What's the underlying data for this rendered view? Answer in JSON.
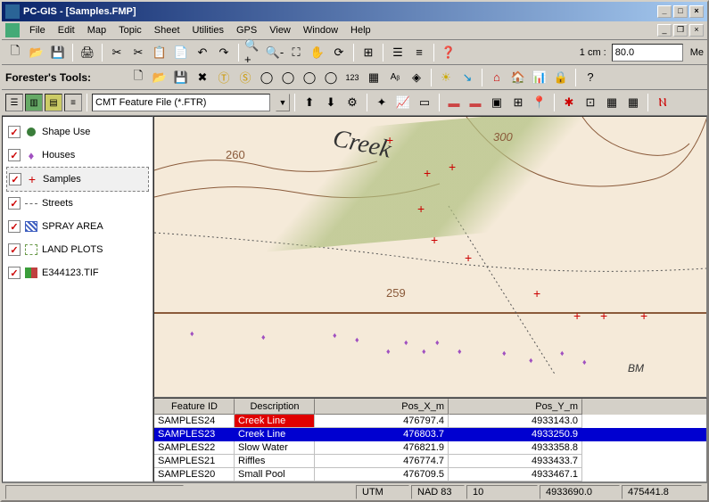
{
  "window": {
    "title": "PC-GIS - [Samples.FMP]"
  },
  "menu": {
    "items": [
      "File",
      "Edit",
      "Map",
      "Topic",
      "Sheet",
      "Utilities",
      "GPS",
      "View",
      "Window",
      "Help"
    ]
  },
  "main_toolbar": {
    "scale_label": "1 cm :",
    "scale_value": "80.0",
    "unit_label": "Me"
  },
  "forester": {
    "label": "Forester's Tools:"
  },
  "feature_select": {
    "value": "CMT Feature File (*.FTR)"
  },
  "layers": {
    "items": [
      {
        "label": "Shape Use",
        "icon": "shape",
        "checked": true
      },
      {
        "label": "Houses",
        "icon": "house",
        "checked": true
      },
      {
        "label": "Samples",
        "icon": "sample",
        "checked": true,
        "selected": true
      },
      {
        "label": "Streets",
        "icon": "street",
        "checked": true
      },
      {
        "label": "SPRAY AREA",
        "icon": "spray",
        "checked": true
      },
      {
        "label": "LAND PLOTS",
        "icon": "land",
        "checked": true
      },
      {
        "label": "E344123.TIF",
        "icon": "tif",
        "checked": true
      }
    ]
  },
  "map": {
    "creek_label": "Creek",
    "contours": {
      "c260": "260",
      "c300": "300",
      "c259": "259"
    },
    "bm_label": "BM"
  },
  "grid": {
    "columns": [
      "Feature ID",
      "Description",
      "Pos_X_m",
      "Pos_Y_m"
    ],
    "rows": [
      {
        "fid": "SAMPLES24",
        "desc": "Creek Line",
        "x": "476797.4",
        "y": "4933143.0",
        "style": "red"
      },
      {
        "fid": "SAMPLES23",
        "desc": "Creek Line",
        "x": "476803.7",
        "y": "4933250.9",
        "style": "blue"
      },
      {
        "fid": "SAMPLES22",
        "desc": "Slow Water",
        "x": "476821.9",
        "y": "4933358.8",
        "style": ""
      },
      {
        "fid": "SAMPLES21",
        "desc": "Riffles",
        "x": "476774.7",
        "y": "4933433.7",
        "style": ""
      },
      {
        "fid": "SAMPLES20",
        "desc": "Small Pool",
        "x": "476709.5",
        "y": "4933467.1",
        "style": ""
      }
    ]
  },
  "status": {
    "projection": "UTM",
    "datum": "NAD 83",
    "zone": "10",
    "y": "4933690.0",
    "x": "475441.8"
  }
}
